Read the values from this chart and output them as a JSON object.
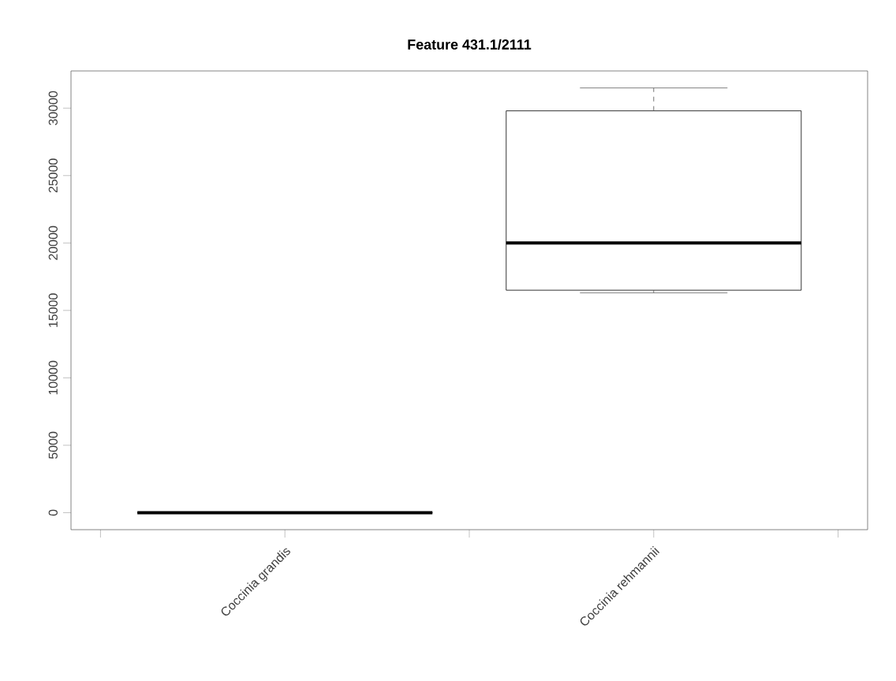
{
  "chart_data": {
    "type": "box",
    "title": "Feature  431.1/2111",
    "categories": [
      "Coccinia grandis",
      "Coccinia rehmannii"
    ],
    "boxes": [
      {
        "low": 0,
        "q1": 0,
        "median": 0,
        "q3": 0,
        "high": 0
      },
      {
        "low": 16300,
        "q1": 16500,
        "median": 20000,
        "q3": 29800,
        "high": 31500
      }
    ],
    "ylim": [
      -1260,
      32760
    ],
    "yticks": [
      0,
      5000,
      10000,
      15000,
      20000,
      25000,
      30000
    ],
    "grid": false
  }
}
